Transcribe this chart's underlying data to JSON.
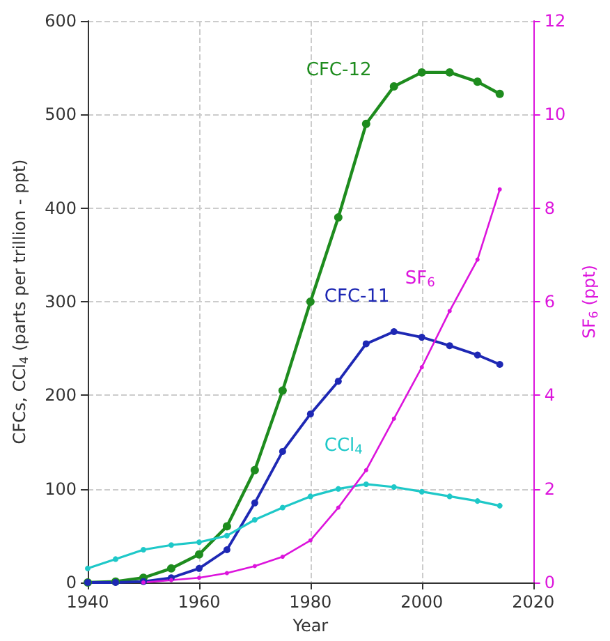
{
  "chart_data": {
    "type": "line",
    "xlabel": "Year",
    "ylabel": "CFCs, CCl$_{4}$ (parts per trillion - ppt)",
    "y2label": "SF$_{6}$ (ppt)",
    "x": [
      1940,
      1945,
      1950,
      1955,
      1960,
      1965,
      1970,
      1975,
      1980,
      1985,
      1990,
      1995,
      2000,
      2005,
      2010,
      2014
    ],
    "series": [
      {
        "name": "CFC-12",
        "color": "#1e8c1e",
        "values": [
          0,
          1,
          5,
          15,
          30,
          60,
          120,
          205,
          300,
          390,
          490,
          530,
          545,
          545,
          535,
          522
        ]
      },
      {
        "name": "CFC-11",
        "color": "#1e28b4",
        "values": [
          0,
          0,
          1,
          5,
          15,
          35,
          85,
          140,
          180,
          215,
          255,
          268,
          262,
          253,
          243,
          233
        ]
      },
      {
        "name": "CCl$_{4}$",
        "color": "#1ec8c8",
        "values": [
          15,
          25,
          35,
          40,
          43,
          50,
          67,
          80,
          92,
          100,
          105,
          102,
          97,
          92,
          87,
          82
        ]
      },
      {
        "name": "SF$_{6}$",
        "color": "#dc14dc",
        "axis": "y2",
        "values": [
          null,
          null,
          0,
          0.05,
          0.1,
          0.2,
          0.35,
          0.55,
          0.9,
          1.6,
          2.4,
          3.5,
          4.6,
          5.8,
          6.9,
          8.4
        ]
      }
    ],
    "xlim": [
      1940,
      2020
    ],
    "xticks": [
      1940,
      1960,
      1980,
      2000,
      2020
    ],
    "ylim": [
      0,
      600
    ],
    "yticks": [
      0,
      100,
      200,
      300,
      400,
      500,
      600
    ],
    "y2lim": [
      0,
      12
    ],
    "y2ticks": [
      0,
      2,
      4,
      6,
      8,
      10,
      12
    ],
    "grid": true,
    "marker": "circle",
    "line_style": "solid"
  }
}
